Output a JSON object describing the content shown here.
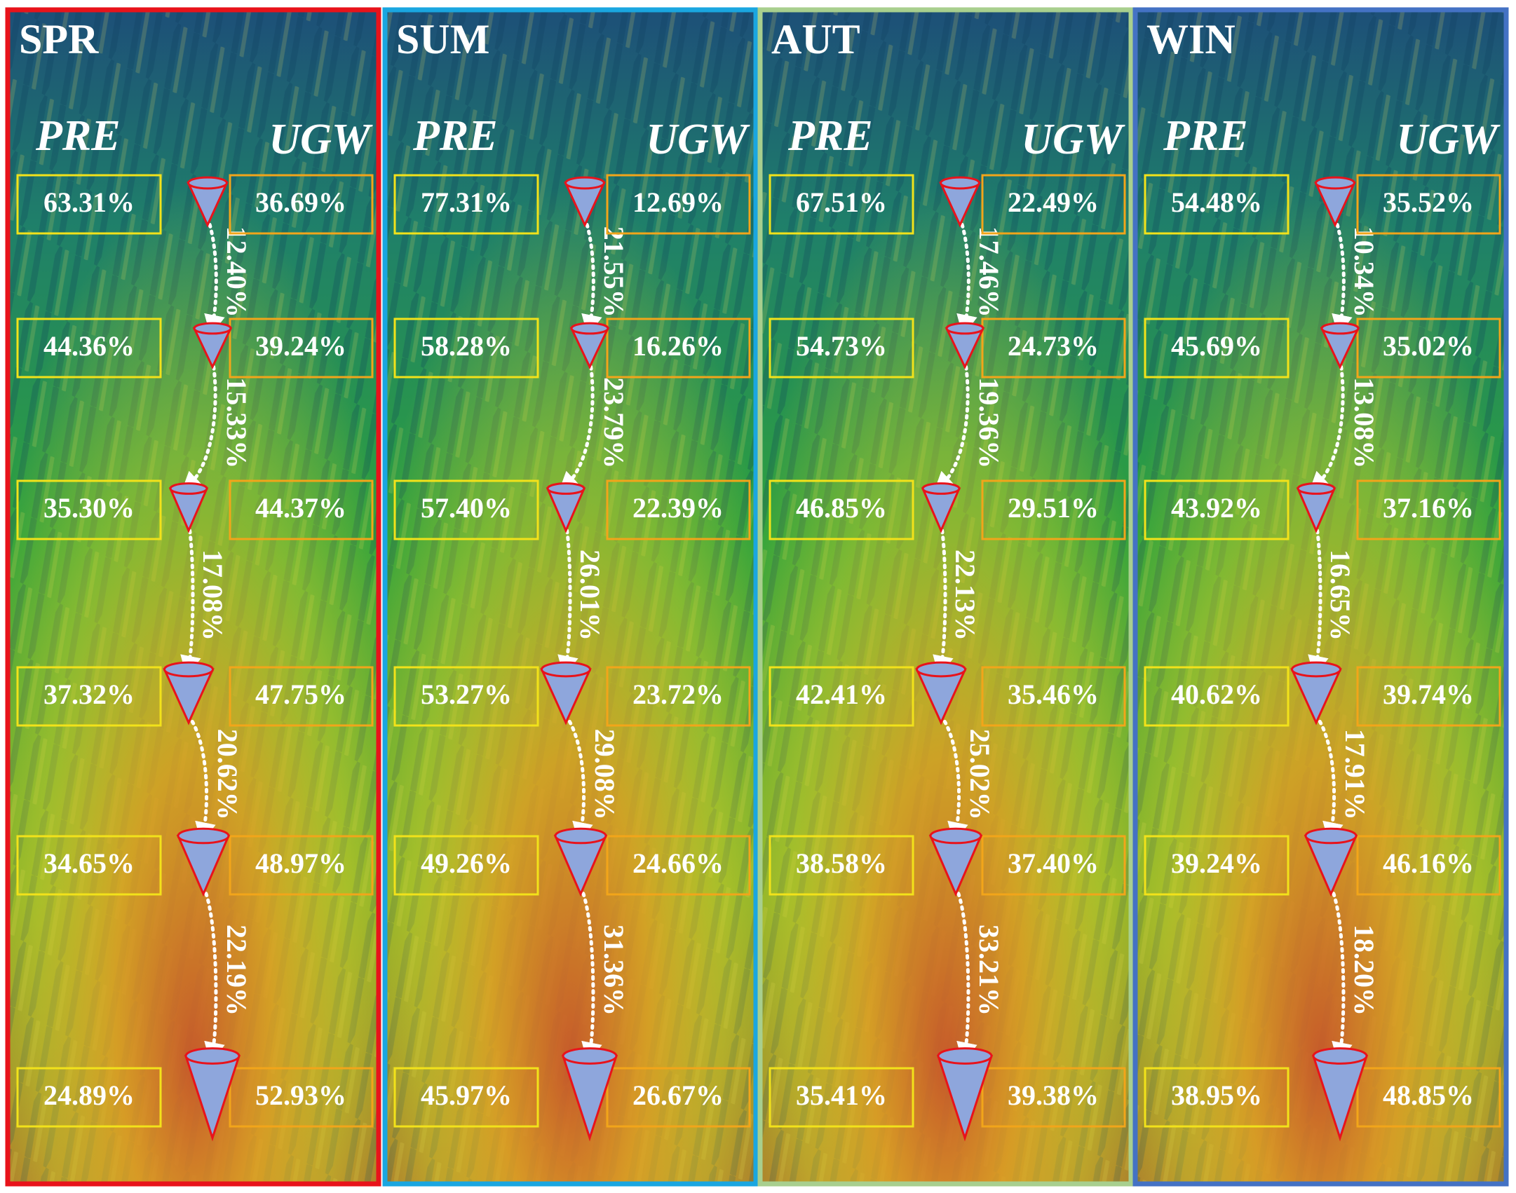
{
  "panels": [
    {
      "title": "SPR",
      "pre_label": "PRE",
      "ugw_label": "UGW",
      "pre": [
        "63.31%",
        "44.36%",
        "35.30%",
        "37.32%",
        "34.65%",
        "24.89%"
      ],
      "ugw": [
        "36.69%",
        "39.24%",
        "44.37%",
        "47.75%",
        "48.97%",
        "52.93%"
      ],
      "flows": [
        "12.40%",
        "15.33%",
        "17.08%",
        "20.62%",
        "22.19%"
      ]
    },
    {
      "title": "SUM",
      "pre_label": "PRE",
      "ugw_label": "UGW",
      "pre": [
        "77.31%",
        "58.28%",
        "57.40%",
        "53.27%",
        "49.26%",
        "45.97%"
      ],
      "ugw": [
        "12.69%",
        "16.26%",
        "22.39%",
        "23.72%",
        "24.66%",
        "26.67%"
      ],
      "flows": [
        "21.55%",
        "23.79%",
        "26.01%",
        "29.08%",
        "31.36%"
      ]
    },
    {
      "title": "AUT",
      "pre_label": "PRE",
      "ugw_label": "UGW",
      "pre": [
        "67.51%",
        "54.73%",
        "46.85%",
        "42.41%",
        "38.58%",
        "35.41%"
      ],
      "ugw": [
        "22.49%",
        "24.73%",
        "29.51%",
        "35.46%",
        "37.40%",
        "39.38%"
      ],
      "flows": [
        "17.46%",
        "19.36%",
        "22.13%",
        "25.02%",
        "33.21%"
      ]
    },
    {
      "title": "WIN",
      "pre_label": "PRE",
      "ugw_label": "UGW",
      "pre": [
        "54.48%",
        "45.69%",
        "43.92%",
        "40.62%",
        "39.24%",
        "38.95%"
      ],
      "ugw": [
        "35.52%",
        "35.02%",
        "37.16%",
        "39.74%",
        "46.16%",
        "48.85%"
      ],
      "flows": [
        "10.34%",
        "13.08%",
        "16.65%",
        "17.91%",
        "18.20%"
      ]
    }
  ]
}
